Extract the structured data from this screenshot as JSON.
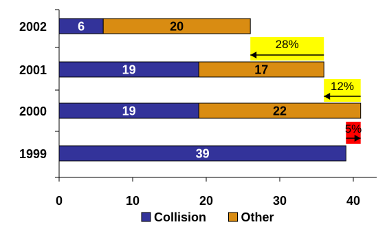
{
  "chart_data": {
    "type": "bar",
    "orientation": "horizontal",
    "stacked": true,
    "categories": [
      "2002",
      "2001",
      "2000",
      "1999"
    ],
    "series": [
      {
        "name": "Collision",
        "values": [
          6,
          19,
          19,
          39
        ],
        "color": "#33339a",
        "label_color": "#ffffff"
      },
      {
        "name": "Other",
        "values": [
          20,
          17,
          22,
          0
        ],
        "color": "#d98c12",
        "label_color": "#000000"
      }
    ],
    "xlim": [
      0,
      45
    ],
    "xticks": [
      0,
      10,
      20,
      30,
      40
    ],
    "grid": false,
    "legend": "bottom",
    "annotations": [
      {
        "label": "28%",
        "from": 36,
        "to": 26,
        "category": "2002",
        "color": "#ffff00"
      },
      {
        "label": "12%",
        "from": 41,
        "to": 36,
        "category": "2001",
        "color": "#ffff00"
      },
      {
        "label": "5%",
        "from": 39,
        "to": 41,
        "category": "2000",
        "color": "#ff0000"
      }
    ]
  }
}
